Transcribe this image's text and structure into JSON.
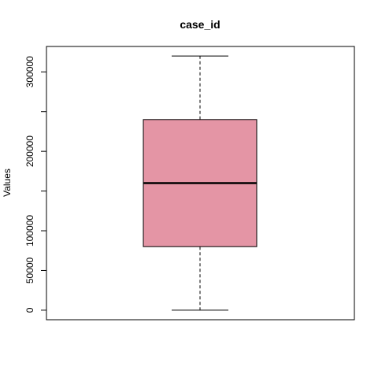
{
  "chart_data": {
    "type": "boxplot",
    "title": "case_id",
    "xlabel": "",
    "ylabel": "Values",
    "ylim": [
      -12000,
      332000
    ],
    "yticks": [
      0,
      50000,
      100000,
      200000,
      300000
    ],
    "yticks_unlabeled": [
      150000,
      250000
    ],
    "grid": false,
    "legend": "none",
    "box": {
      "whisker_low": 0,
      "q1": 80000,
      "median": 160000,
      "q3": 240000,
      "whisker_high": 320000
    },
    "colors": {
      "box_fill": "#E495A5",
      "stroke": "#000000",
      "background": "#FFFFFF"
    }
  }
}
